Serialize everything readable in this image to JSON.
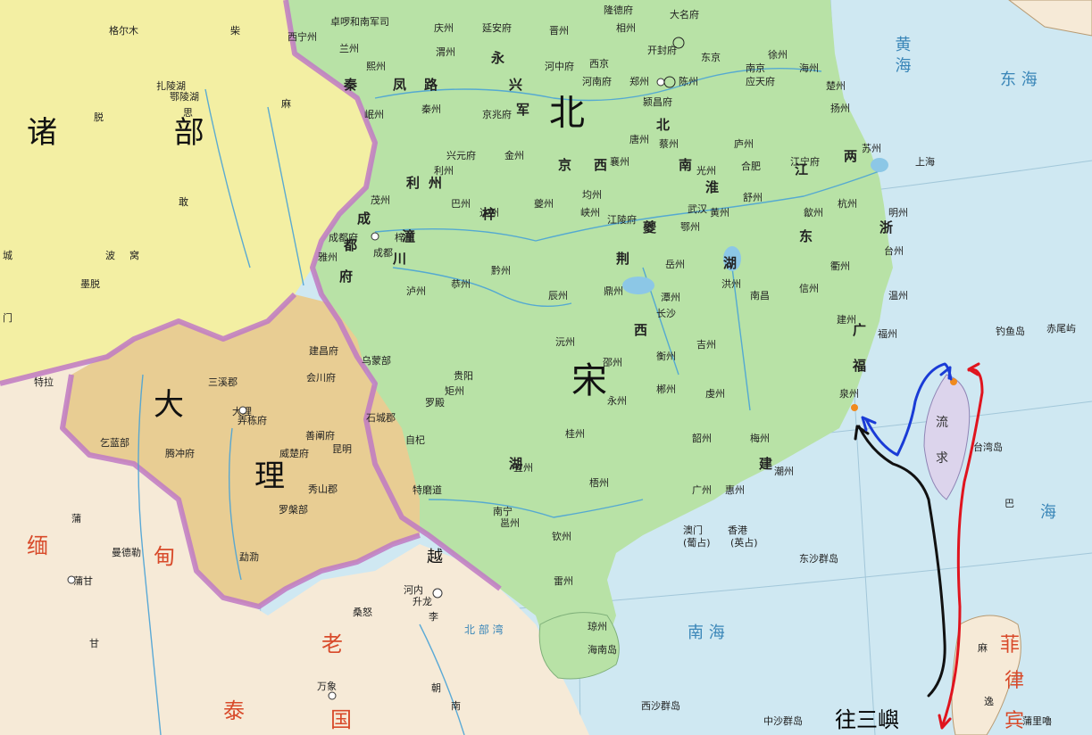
{
  "map": {
    "colors": {
      "sea": "#cfe8f2",
      "song": "#b9e3a8",
      "tibet": "#f4f0a6",
      "dali": "#e9cf95",
      "south": "#f7ecd8",
      "border": "#c07ac4",
      "river": "#4aa3d6",
      "route_black": "#111111",
      "route_blue": "#1a3bd6",
      "route_red": "#e0141e",
      "marker": "#f08a1e"
    },
    "regions": {
      "zhubu": "诸 部",
      "bei": "北",
      "song": "宋",
      "da": "大",
      "li": "理",
      "yue": "越",
      "mian": "缅",
      "dian": "甸",
      "lao": "老",
      "tai": "泰",
      "guo": "国",
      "liuqiu": "流",
      "qiu": "求",
      "fei": "菲",
      "lv": "律",
      "bin": "宾"
    },
    "seas": {
      "huanghai": "黄  海",
      "donghai": "东  海",
      "taiwan_hai": "海",
      "nanhai": "南  海",
      "beibuwan": "北  部  湾"
    },
    "routes": {
      "to_sanyu": "往三嶼"
    },
    "places": [
      {
        "t": "卓啰和南军司"
      },
      {
        "t": "西宁州"
      },
      {
        "t": "兰州"
      },
      {
        "t": "熙州"
      },
      {
        "t": "岷州"
      },
      {
        "t": "秦州"
      },
      {
        "t": "渭州"
      },
      {
        "t": "庆州"
      },
      {
        "t": "延安府"
      },
      {
        "t": "晋州"
      },
      {
        "t": "隆德府"
      },
      {
        "t": "相州"
      },
      {
        "t": "大名府"
      },
      {
        "t": "开封府"
      },
      {
        "t": "东京"
      },
      {
        "t": "河中府"
      },
      {
        "t": "西京"
      },
      {
        "t": "郑州"
      },
      {
        "t": "河南府"
      },
      {
        "t": "京兆府"
      },
      {
        "t": "陈州"
      },
      {
        "t": "南京"
      },
      {
        "t": "徐州"
      },
      {
        "t": "应天府"
      },
      {
        "t": "颍昌府"
      },
      {
        "t": "海州"
      },
      {
        "t": "楚州"
      },
      {
        "t": "扬州"
      },
      {
        "t": "苏州"
      },
      {
        "t": "上海"
      },
      {
        "t": "兴元府"
      },
      {
        "t": "金州"
      },
      {
        "t": "利州"
      },
      {
        "t": "唐州"
      },
      {
        "t": "襄州"
      },
      {
        "t": "蔡州"
      },
      {
        "t": "光州"
      },
      {
        "t": "庐州"
      },
      {
        "t": "合肥"
      },
      {
        "t": "舒州"
      },
      {
        "t": "江宁府"
      },
      {
        "t": "巴州"
      },
      {
        "t": "茂州"
      },
      {
        "t": "达州"
      },
      {
        "t": "夔州"
      },
      {
        "t": "峡州"
      },
      {
        "t": "均州"
      },
      {
        "t": "江陵府"
      },
      {
        "t": "鄂州"
      },
      {
        "t": "武汉"
      },
      {
        "t": "黄州"
      },
      {
        "t": "歙州"
      },
      {
        "t": "杭州"
      },
      {
        "t": "明州"
      },
      {
        "t": "成都府"
      },
      {
        "t": "成都"
      },
      {
        "t": "雅州"
      },
      {
        "t": "梓州"
      },
      {
        "t": "黔州"
      },
      {
        "t": "岳州"
      },
      {
        "t": "洪州"
      },
      {
        "t": "南昌"
      },
      {
        "t": "信州"
      },
      {
        "t": "衢州"
      },
      {
        "t": "台州"
      },
      {
        "t": "温州"
      },
      {
        "t": "泸州"
      },
      {
        "t": "恭州"
      },
      {
        "t": "辰州"
      },
      {
        "t": "鼎州"
      },
      {
        "t": "潭州"
      },
      {
        "t": "长沙"
      },
      {
        "t": "建州"
      },
      {
        "t": "福州"
      },
      {
        "t": "乌蒙部"
      },
      {
        "t": "沅州"
      },
      {
        "t": "邵州"
      },
      {
        "t": "衡州"
      },
      {
        "t": "吉州"
      },
      {
        "t": "虔州"
      },
      {
        "t": "泉州"
      },
      {
        "t": "贵阳"
      },
      {
        "t": "矩州"
      },
      {
        "t": "永州"
      },
      {
        "t": "郴州"
      },
      {
        "t": "韶州"
      },
      {
        "t": "梅州"
      },
      {
        "t": "潮州"
      },
      {
        "t": "桂州"
      },
      {
        "t": "宜州"
      },
      {
        "t": "广州"
      },
      {
        "t": "惠州"
      },
      {
        "t": "梧州"
      },
      {
        "t": "邕州"
      },
      {
        "t": "南宁"
      },
      {
        "t": "钦州"
      },
      {
        "t": "雷州"
      },
      {
        "t": "琼州"
      },
      {
        "t": "海南岛"
      },
      {
        "t": "香港"
      },
      {
        "t": "(英占)"
      },
      {
        "t": "澳门"
      },
      {
        "t": "(葡占)"
      },
      {
        "t": "东沙群岛"
      },
      {
        "t": "西沙群岛"
      },
      {
        "t": "中沙群岛"
      },
      {
        "t": "钓鱼岛"
      },
      {
        "t": "赤尾屿"
      },
      {
        "t": "台湾岛"
      },
      {
        "t": "特磨道"
      },
      {
        "t": "自杞"
      },
      {
        "t": "罗殿"
      },
      {
        "t": "建昌府"
      },
      {
        "t": "会川府"
      },
      {
        "t": "三溪郡"
      },
      {
        "t": "大理"
      },
      {
        "t": "弄栋府"
      },
      {
        "t": "善阐府"
      },
      {
        "t": "昆明"
      },
      {
        "t": "威楚府"
      },
      {
        "t": "石城郡"
      },
      {
        "t": "秀山郡"
      },
      {
        "t": "腾冲府"
      },
      {
        "t": "乞蓝部"
      },
      {
        "t": "罗槃部"
      },
      {
        "t": "勐泐"
      },
      {
        "t": "河内"
      },
      {
        "t": "升龙"
      },
      {
        "t": "李"
      },
      {
        "t": "蒲甘"
      },
      {
        "t": "蒲"
      },
      {
        "t": "甘"
      },
      {
        "t": "曼德勒"
      },
      {
        "t": "桑怒"
      },
      {
        "t": "万象"
      },
      {
        "t": "朝"
      },
      {
        "t": "南"
      },
      {
        "t": "麻"
      },
      {
        "t": "逸"
      },
      {
        "t": "蒲里嚕"
      },
      {
        "t": "格尔木"
      },
      {
        "t": "扎陵湖"
      },
      {
        "t": "鄂陵湖"
      },
      {
        "t": "脱"
      },
      {
        "t": "思"
      },
      {
        "t": "敢"
      },
      {
        "t": "波"
      },
      {
        "t": "窝"
      },
      {
        "t": "墨脱"
      },
      {
        "t": "城"
      },
      {
        "t": "门"
      },
      {
        "t": "特拉"
      },
      {
        "t": "柴"
      },
      {
        "t": "麻"
      },
      {
        "t": "巴"
      }
    ],
    "lu": [
      "秦",
      "凤",
      "路",
      "永",
      "兴",
      "军",
      "京",
      "西",
      "北",
      "南",
      "淮",
      "东",
      "两",
      "浙",
      "江",
      "利",
      "州",
      "成",
      "都",
      "府",
      "潼",
      "川",
      "梓",
      "夔",
      "荆",
      "湖",
      "广",
      "福",
      "建",
      "西",
      "湖"
    ]
  }
}
